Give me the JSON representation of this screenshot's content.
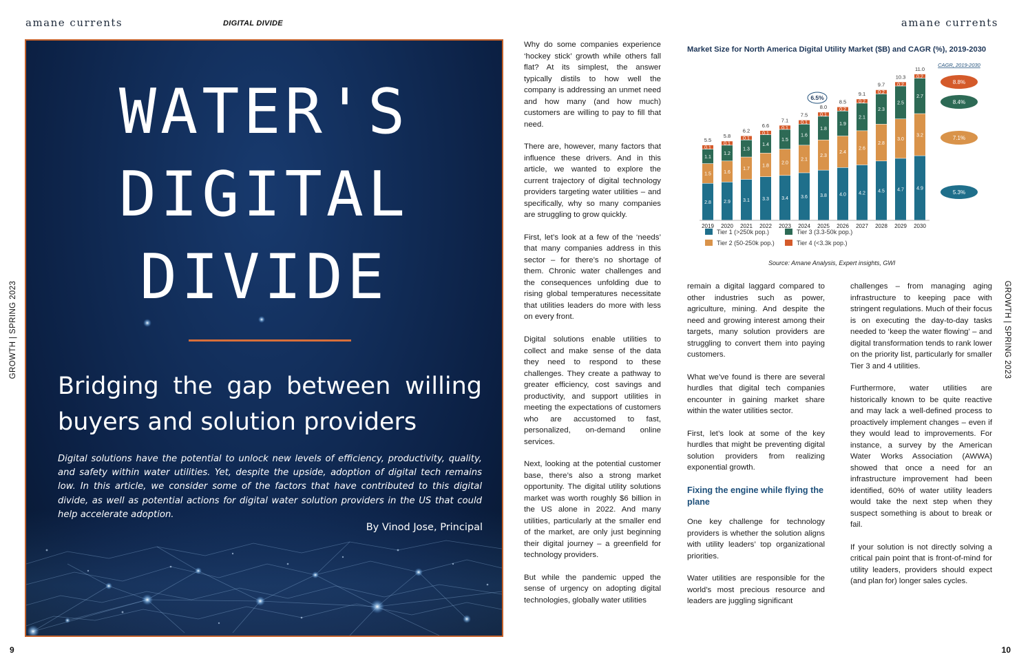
{
  "header": {
    "brand_left": "amane currents",
    "brand_right": "amane currents",
    "section": "DIGITAL DIVIDE",
    "side_left": "GROWTH | SPRING 2023",
    "side_right": "GROWTH | SPRING 2023",
    "page_left": "9",
    "page_right": "10"
  },
  "cover": {
    "headline": [
      "WATER'S",
      "DIGITAL",
      "DIVIDE"
    ],
    "subtitle": [
      "Bridging the gap between willing",
      "buyers and solution providers"
    ],
    "intro": "Digital solutions have the potential to unlock new levels of efficiency, productivity, quality, and safety within water utilities. Yet, despite the upside, adoption of digital tech remains low. In this article, we consider some of the factors that have contributed to this digital divide, as well as potential actions for digital water solution providers in the US that could help accelerate adoption.",
    "byline": "By Vinod Jose, Principal"
  },
  "article": {
    "col1": [
      "Why do some companies experience ‘hockey stick’ growth while others fall flat? At its simplest, the answer typically distils to how well the company is addressing an unmet need and how many (and how much) customers are willing to pay to fill that need.",
      "There are, however, many factors that influence these drivers. And in this article, we wanted to explore the current trajectory of digital technology providers targeting water utilities – and specifically, why so many companies are struggling to grow quickly.",
      "First, let’s look at a few of the ‘needs’ that many companies address in this sector – for there’s no shortage of them. Chronic water challenges and the consequences unfolding due to rising global temperatures necessitate that utilities leaders do more with less on every front.",
      "Digital solutions enable utilities to collect and make sense of the data they need to respond to these challenges. They create a pathway to greater efficiency, cost savings and productivity, and support utilities in meeting the expectations of customers who are accustomed to fast, personalized, on-demand online services.",
      "Next, looking at the potential customer base, there’s also a strong market opportunity. The digital utility solutions market was worth roughly $6 billion in the US alone in 2022. And many utilities, particularly at the smaller end of the market, are only just beginning their digital journey – a greenfield for technology providers.",
      "But while the pandemic upped the sense of urgency on adopting digital technologies, globally water utilities"
    ],
    "col2_a": [
      "remain a digital laggard compared to other industries such as power, agriculture, mining. And despite the need and growing interest among their targets, many solution providers are struggling to convert them into paying customers.",
      "What we’ve found is there are several hurdles that digital tech companies encounter in gaining market share within the water utilities sector.",
      "First, let’s look at some of the key hurdles that might be preventing digital solution providers from realizing exponential growth."
    ],
    "col2_heading": "Fixing the engine while flying the plane",
    "col2_b": [
      "One key challenge for technology providers is whether the solution aligns with utility leaders’ top organizational priorities.",
      "Water utilities are responsible for the world’s most precious resource and leaders are juggling significant"
    ],
    "col3": [
      "challenges – from managing aging infrastructure to keeping pace with stringent regulations. Much of their focus is on executing the day-to-day tasks needed to ‘keep the water flowing’ – and digital transformation tends to rank lower on the priority list, particularly for smaller Tier 3 and 4 utilities.",
      "Furthermore, water utilities are historically known to be quite reactive and may lack a well-defined process to proactively implement changes – even if they would lead to improvements. For instance, a survey by the American Water Works Association (AWWA) showed that once a need for an infrastructure improvement had been identified, 60% of water utility leaders would take the next step when they suspect something is about to break or fail.",
      "If your solution is not directly solving a critical pain point that is front-of-mind for utility leaders, providers should expect (and plan for) longer sales cycles."
    ]
  },
  "chart_data": {
    "type": "bar",
    "stacked": true,
    "title": "Market Size for North America Digital Utility Market ($B) and CAGR (%), 2019-2030",
    "source": "Source: Amane Analysis, Expert insights, GWI",
    "categories": [
      "2019",
      "2020",
      "2021",
      "2022",
      "2023",
      "2024",
      "2025",
      "2026",
      "2027",
      "2028",
      "2029",
      "2030"
    ],
    "totals": [
      "5.5",
      "5.8",
      "6.2",
      "6.6",
      "7.1",
      "7.5",
      "8.0",
      "8.5",
      "9.1",
      "9.7",
      "10.3",
      "11.0"
    ],
    "series": [
      {
        "name": "Tier 1 (>250k pop.)",
        "color": "#1f6f8b",
        "values": [
          2.8,
          2.9,
          3.1,
          3.3,
          3.4,
          3.6,
          3.8,
          4.0,
          4.2,
          4.5,
          4.7,
          4.9
        ]
      },
      {
        "name": "Tier 2 (50-250k pop.)",
        "color": "#d9934a",
        "values": [
          1.5,
          1.6,
          1.7,
          1.8,
          2.0,
          2.1,
          2.3,
          2.4,
          2.6,
          2.8,
          3.0,
          3.2
        ]
      },
      {
        "name": "Tier 3 (3.3-50k pop.)",
        "color": "#2d6a55",
        "values": [
          1.1,
          1.2,
          1.3,
          1.4,
          1.5,
          1.6,
          1.8,
          1.9,
          2.1,
          2.3,
          2.5,
          2.7
        ]
      },
      {
        "name": "Tier 4 (<3.3k pop.)",
        "color": "#d45a2a",
        "values": [
          0.1,
          0.1,
          0.1,
          0.1,
          0.1,
          0.1,
          0.1,
          0.2,
          0.2,
          0.2,
          0.2,
          0.2
        ]
      }
    ],
    "total_cagr_label": "6.5%",
    "cagr_header": "CAGR, 2019-2030",
    "cagr": [
      {
        "series": "Tier 4 (<3.3k pop.)",
        "value": "8.8%",
        "color": "#d45a2a"
      },
      {
        "series": "Tier 3 (3.3-50k pop.)",
        "value": "8.4%",
        "color": "#2d6a55"
      },
      {
        "series": "Tier 2 (50-250k pop.)",
        "value": "7.1%",
        "color": "#d9934a"
      },
      {
        "series": "Tier 1 (>250k pop.)",
        "value": "5.3%",
        "color": "#1f6f8b"
      }
    ],
    "ylim": [
      0,
      11.0
    ],
    "legend_position": "bottom"
  }
}
